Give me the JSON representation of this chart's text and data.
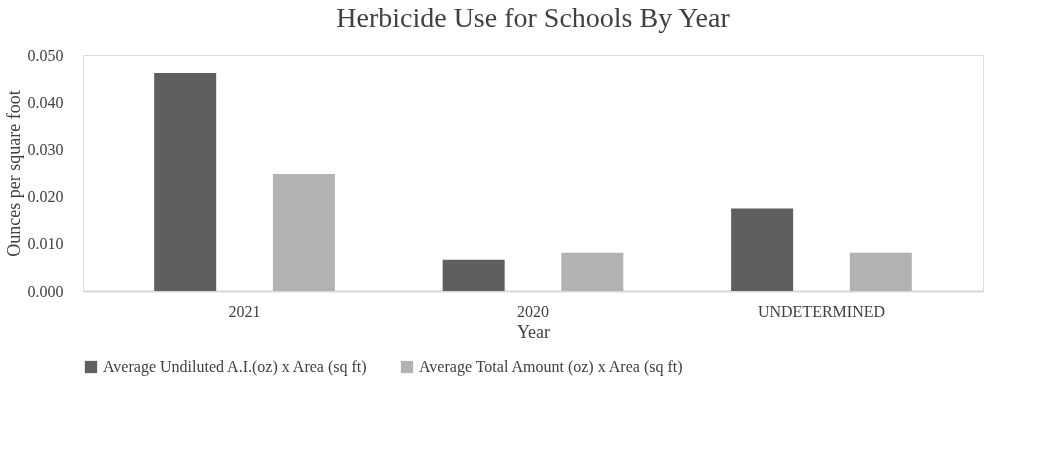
{
  "chart_data": {
    "type": "bar",
    "title": "Herbicide Use for Schools By Year",
    "xlabel": "Year",
    "ylabel": "Ounces per square foot",
    "categories": [
      "2021",
      "2020",
      "UNDETERMINED"
    ],
    "series": [
      {
        "name": "Average Undiluted A.I.(oz) x Area (sq ft)",
        "color": "#5f5f5f",
        "values": [
          0.0462,
          0.0066,
          0.0175
        ]
      },
      {
        "name": "Average Total Amount (oz) x Area (sq ft)",
        "color": "#b2b2b2",
        "values": [
          0.0248,
          0.0081,
          0.0081
        ]
      }
    ],
    "ylim": [
      0,
      0.05
    ],
    "yticks": [
      {
        "value": 0,
        "label": "0.000"
      },
      {
        "value": 0.01,
        "label": "0.010"
      },
      {
        "value": 0.02,
        "label": "0.020"
      },
      {
        "value": 0.03,
        "label": "0.030"
      },
      {
        "value": 0.04,
        "label": "0.040"
      },
      {
        "value": 0.05,
        "label": "0.050"
      }
    ],
    "grid": false,
    "legend": "bottom"
  }
}
